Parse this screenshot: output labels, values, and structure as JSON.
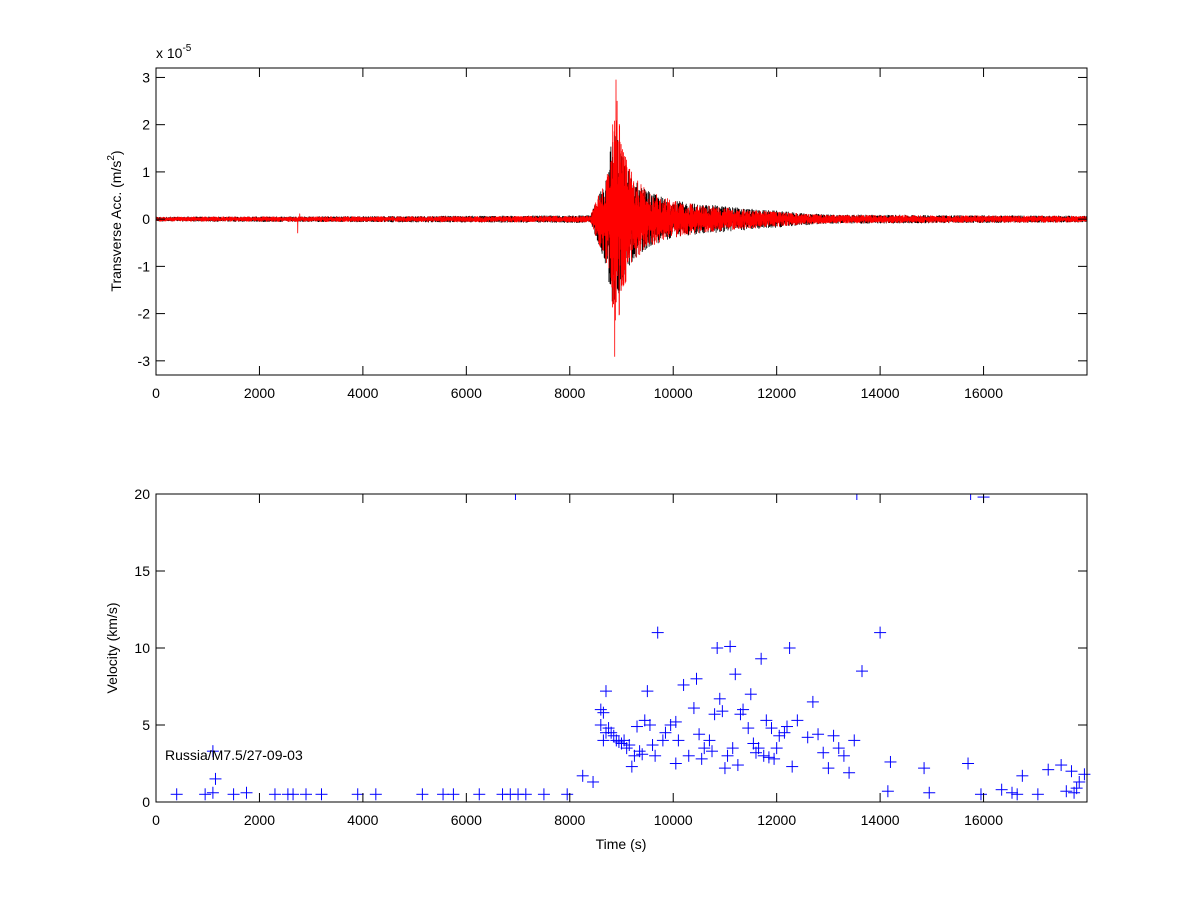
{
  "chart_data": [
    {
      "type": "line",
      "ylabel_main": "Transverse Acc. (m/s",
      "ylabel_sup": "2",
      "ylabel_close": ")",
      "exponent_prefix": "x 10",
      "exponent_power": "-5",
      "xlim": [
        0,
        18000
      ],
      "ylim": [
        -3.3,
        3.2
      ],
      "x_ticks": [
        0,
        2000,
        4000,
        6000,
        8000,
        10000,
        12000,
        14000,
        16000
      ],
      "x_tick_labels": [
        "0",
        "2000",
        "4000",
        "6000",
        "8000",
        "10000",
        "12000",
        "14000",
        "16000"
      ],
      "y_ticks": [
        -3,
        -2,
        -1,
        0,
        1,
        2,
        3
      ],
      "y_tick_labels": [
        "-3",
        "-2",
        "-1",
        "0",
        "1",
        "2",
        "3"
      ],
      "series": [
        {
          "color": "#000000",
          "envelope": [
            [
              0,
              0.05
            ],
            [
              8400,
              0.08
            ],
            [
              8550,
              0.5
            ],
            [
              8700,
              1.0
            ],
            [
              8800,
              1.7
            ],
            [
              8850,
              2.1
            ],
            [
              8950,
              1.6
            ],
            [
              9100,
              1.1
            ],
            [
              9300,
              0.8
            ],
            [
              9600,
              0.55
            ],
            [
              10000,
              0.4
            ],
            [
              10500,
              0.32
            ],
            [
              11000,
              0.28
            ],
            [
              11500,
              0.22
            ],
            [
              12000,
              0.18
            ],
            [
              12500,
              0.13
            ],
            [
              13000,
              0.1
            ],
            [
              18000,
              0.07
            ]
          ]
        },
        {
          "color": "#ff0000",
          "envelope": [
            [
              0,
              0.05
            ],
            [
              8400,
              0.07
            ],
            [
              8550,
              0.5
            ],
            [
              8700,
              0.9
            ],
            [
              8800,
              1.3
            ],
            [
              8880,
              3.2
            ],
            [
              8920,
              2.5
            ],
            [
              9000,
              1.7
            ],
            [
              9200,
              1.0
            ],
            [
              9500,
              0.6
            ],
            [
              10000,
              0.4
            ],
            [
              10500,
              0.3
            ],
            [
              11000,
              0.25
            ],
            [
              11500,
              0.2
            ],
            [
              12000,
              0.16
            ],
            [
              12500,
              0.12
            ],
            [
              13000,
              0.09
            ],
            [
              18000,
              0.07
            ]
          ],
          "spikes": [
            [
              2740,
              -0.3
            ],
            [
              2780,
              0.12
            ]
          ]
        }
      ]
    },
    {
      "type": "scatter",
      "xlabel": "Time (s)",
      "ylabel": "Velocity (km/s)",
      "xlim": [
        0,
        18000
      ],
      "ylim": [
        0,
        20
      ],
      "x_ticks": [
        0,
        2000,
        4000,
        6000,
        8000,
        10000,
        12000,
        14000,
        16000
      ],
      "x_tick_labels": [
        "0",
        "2000",
        "4000",
        "6000",
        "8000",
        "10000",
        "12000",
        "14000",
        "16000"
      ],
      "y_ticks": [
        0,
        5,
        10,
        15,
        20
      ],
      "y_tick_labels": [
        "0",
        "5",
        "10",
        "15",
        "20"
      ],
      "annotation": "Russia/M7.5/27-09-03",
      "marker": "+",
      "color": "#0000ff",
      "points": [
        [
          400,
          0.5
        ],
        [
          950,
          0.5
        ],
        [
          1100,
          0.6
        ],
        [
          1150,
          1.5
        ],
        [
          1100,
          3.3
        ],
        [
          1500,
          0.5
        ],
        [
          1750,
          0.6
        ],
        [
          2300,
          0.5
        ],
        [
          2550,
          0.5
        ],
        [
          2650,
          0.5
        ],
        [
          2900,
          0.5
        ],
        [
          3200,
          0.5
        ],
        [
          3900,
          0.5
        ],
        [
          4250,
          0.5
        ],
        [
          5150,
          0.5
        ],
        [
          5550,
          0.5
        ],
        [
          5750,
          0.5
        ],
        [
          6250,
          0.5
        ],
        [
          6700,
          0.5
        ],
        [
          6850,
          0.5
        ],
        [
          7000,
          0.5
        ],
        [
          7150,
          0.5
        ],
        [
          7500,
          0.5
        ],
        [
          7950,
          0.5
        ],
        [
          8250,
          1.7
        ],
        [
          8450,
          1.3
        ],
        [
          8600,
          6.0
        ],
        [
          8650,
          5.8
        ],
        [
          8700,
          7.2
        ],
        [
          8600,
          5.0
        ],
        [
          8650,
          4.0
        ],
        [
          8700,
          4.5
        ],
        [
          8750,
          4.8
        ],
        [
          8800,
          4.5
        ],
        [
          8850,
          4.3
        ],
        [
          8900,
          4.0
        ],
        [
          8950,
          3.9
        ],
        [
          9000,
          3.8
        ],
        [
          9050,
          4.0
        ],
        [
          9100,
          3.5
        ],
        [
          9150,
          3.7
        ],
        [
          9200,
          2.3
        ],
        [
          9250,
          3.0
        ],
        [
          9300,
          4.9
        ],
        [
          9350,
          3.3
        ],
        [
          9400,
          3.1
        ],
        [
          9450,
          5.3
        ],
        [
          9500,
          7.2
        ],
        [
          9550,
          5.0
        ],
        [
          9600,
          3.7
        ],
        [
          9650,
          3.0
        ],
        [
          9700,
          11.0
        ],
        [
          9800,
          4.0
        ],
        [
          9850,
          4.5
        ],
        [
          9950,
          5.0
        ],
        [
          10050,
          5.2
        ],
        [
          10050,
          2.5
        ],
        [
          10100,
          4.0
        ],
        [
          10200,
          7.6
        ],
        [
          10300,
          3.0
        ],
        [
          10400,
          6.1
        ],
        [
          10450,
          8.0
        ],
        [
          10500,
          4.4
        ],
        [
          10550,
          2.8
        ],
        [
          10600,
          3.5
        ],
        [
          10700,
          4.0
        ],
        [
          10750,
          3.3
        ],
        [
          10800,
          5.7
        ],
        [
          10850,
          10.0
        ],
        [
          10900,
          6.7
        ],
        [
          10950,
          5.9
        ],
        [
          11000,
          2.2
        ],
        [
          11050,
          3.0
        ],
        [
          11100,
          10.1
        ],
        [
          11150,
          3.5
        ],
        [
          11200,
          8.3
        ],
        [
          11250,
          2.4
        ],
        [
          11300,
          5.7
        ],
        [
          11350,
          6.0
        ],
        [
          11450,
          4.8
        ],
        [
          11500,
          7.0
        ],
        [
          11550,
          3.8
        ],
        [
          11600,
          3.2
        ],
        [
          11650,
          3.5
        ],
        [
          11700,
          9.3
        ],
        [
          11750,
          3.0
        ],
        [
          11800,
          5.3
        ],
        [
          11850,
          2.9
        ],
        [
          11900,
          4.8
        ],
        [
          11950,
          2.8
        ],
        [
          12000,
          3.5
        ],
        [
          12050,
          4.3
        ],
        [
          12150,
          4.5
        ],
        [
          12200,
          4.9
        ],
        [
          12250,
          10.0
        ],
        [
          12300,
          2.3
        ],
        [
          12400,
          5.3
        ],
        [
          12600,
          4.2
        ],
        [
          12700,
          6.5
        ],
        [
          12800,
          4.4
        ],
        [
          12900,
          3.2
        ],
        [
          13000,
          2.2
        ],
        [
          13100,
          4.3
        ],
        [
          13200,
          3.5
        ],
        [
          13300,
          3.0
        ],
        [
          13400,
          1.9
        ],
        [
          13500,
          4.0
        ],
        [
          13650,
          8.5
        ],
        [
          14000,
          11.0
        ],
        [
          14150,
          0.7
        ],
        [
          14200,
          2.6
        ],
        [
          14850,
          2.2
        ],
        [
          14950,
          0.6
        ],
        [
          15700,
          2.5
        ],
        [
          15950,
          0.5
        ],
        [
          16350,
          0.8
        ],
        [
          16550,
          0.6
        ],
        [
          16650,
          0.5
        ],
        [
          16750,
          1.7
        ],
        [
          17050,
          0.5
        ],
        [
          17250,
          2.1
        ],
        [
          17500,
          2.4
        ],
        [
          17600,
          0.7
        ],
        [
          17700,
          2.0
        ],
        [
          17750,
          0.6
        ],
        [
          17800,
          0.9
        ],
        [
          17850,
          1.3
        ],
        [
          17950,
          1.8
        ],
        [
          6950,
          20
        ],
        [
          13550,
          20
        ],
        [
          15750,
          20
        ],
        [
          16000,
          19.8
        ]
      ]
    }
  ]
}
